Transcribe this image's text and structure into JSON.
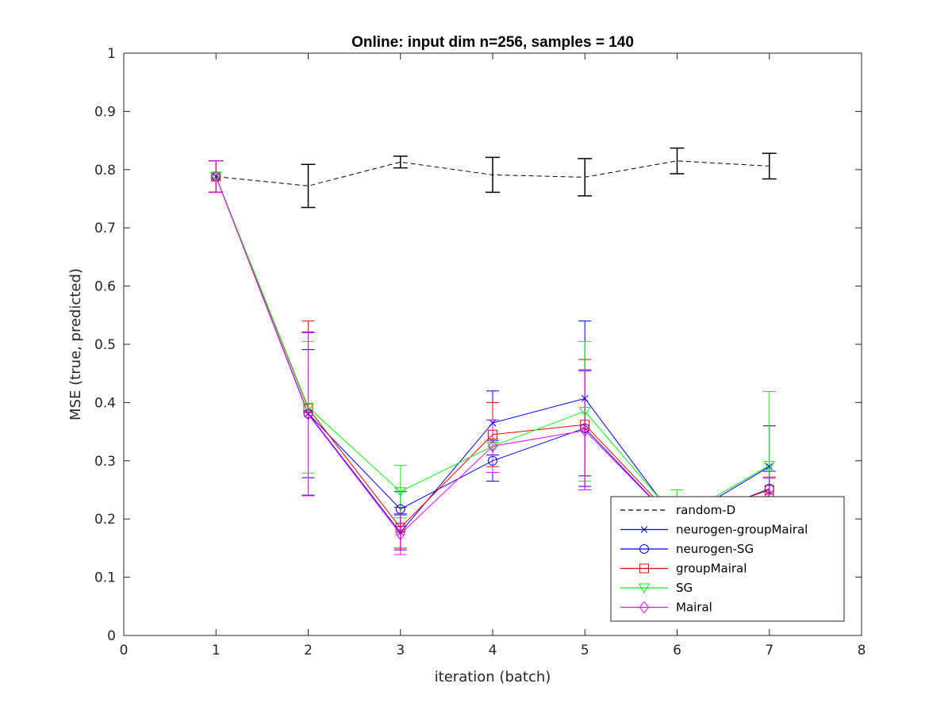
{
  "chart_data": {
    "type": "line",
    "title": "Online:  input dim n=256, samples = 140",
    "xlabel": "iteration (batch)",
    "ylabel": "MSE (true, predicted)",
    "xlim": [
      0,
      8
    ],
    "ylim": [
      0,
      1
    ],
    "xticks": [
      "0",
      "1",
      "2",
      "3",
      "4",
      "5",
      "6",
      "7",
      "8"
    ],
    "yticks": [
      "0",
      "0.1",
      "0.2",
      "0.3",
      "0.4",
      "0.5",
      "0.6",
      "0.7",
      "0.8",
      "0.9",
      "1"
    ],
    "legend_position": "bottom-right",
    "grid": false,
    "series": [
      {
        "name": "random-D",
        "color": "#000000",
        "dash": true,
        "marker": "none",
        "x": [
          1,
          2,
          3,
          4,
          5,
          6,
          7
        ],
        "y": [
          0.788,
          0.772,
          0.813,
          0.791,
          0.787,
          0.815,
          0.806
        ],
        "err": [
          0.027,
          0.037,
          0.01,
          0.03,
          0.032,
          0.022,
          0.022
        ]
      },
      {
        "name": "neurogen-groupMairal",
        "color": "#0000ff",
        "dash": false,
        "marker": "x",
        "x": [
          1,
          2,
          3,
          4,
          5,
          6,
          7
        ],
        "y": [
          0.788,
          0.381,
          0.177,
          0.365,
          0.407,
          0.195,
          0.29
        ],
        "err": [
          0.027,
          0.14,
          0.03,
          0.055,
          0.133,
          0.04,
          0.07
        ]
      },
      {
        "name": "neurogen-SG",
        "color": "#0000ff",
        "dash": false,
        "marker": "o",
        "x": [
          1,
          2,
          3,
          4,
          5,
          6,
          7
        ],
        "y": [
          0.788,
          0.381,
          0.217,
          0.3,
          0.356,
          0.19,
          0.252
        ],
        "err": [
          0.027,
          0.11,
          0.03,
          0.035,
          0.1,
          0.03,
          0.03
        ]
      },
      {
        "name": "groupMairal",
        "color": "#ff0000",
        "dash": false,
        "marker": "s",
        "x": [
          1,
          2,
          3,
          4,
          5,
          6,
          7
        ],
        "y": [
          0.788,
          0.39,
          0.185,
          0.345,
          0.362,
          0.195,
          0.25
        ],
        "err": [
          0.027,
          0.15,
          0.035,
          0.055,
          0.112,
          0.03,
          0.022
        ]
      },
      {
        "name": "SG",
        "color": "#00ff00",
        "dash": false,
        "marker": "v",
        "x": [
          1,
          2,
          3,
          4,
          5,
          6,
          7
        ],
        "y": [
          0.788,
          0.392,
          0.247,
          0.325,
          0.385,
          0.2,
          0.292
        ],
        "err": [
          0.027,
          0.113,
          0.045,
          0.045,
          0.12,
          0.05,
          0.127
        ]
      },
      {
        "name": "Mairal",
        "color": "#ff00ff",
        "dash": false,
        "marker": "d",
        "x": [
          1,
          2,
          3,
          4,
          5,
          6,
          7
        ],
        "y": [
          0.788,
          0.38,
          0.174,
          0.325,
          0.352,
          0.19,
          0.24
        ],
        "err": [
          0.027,
          0.14,
          0.035,
          0.045,
          0.102,
          0.03,
          0.03
        ]
      }
    ]
  }
}
